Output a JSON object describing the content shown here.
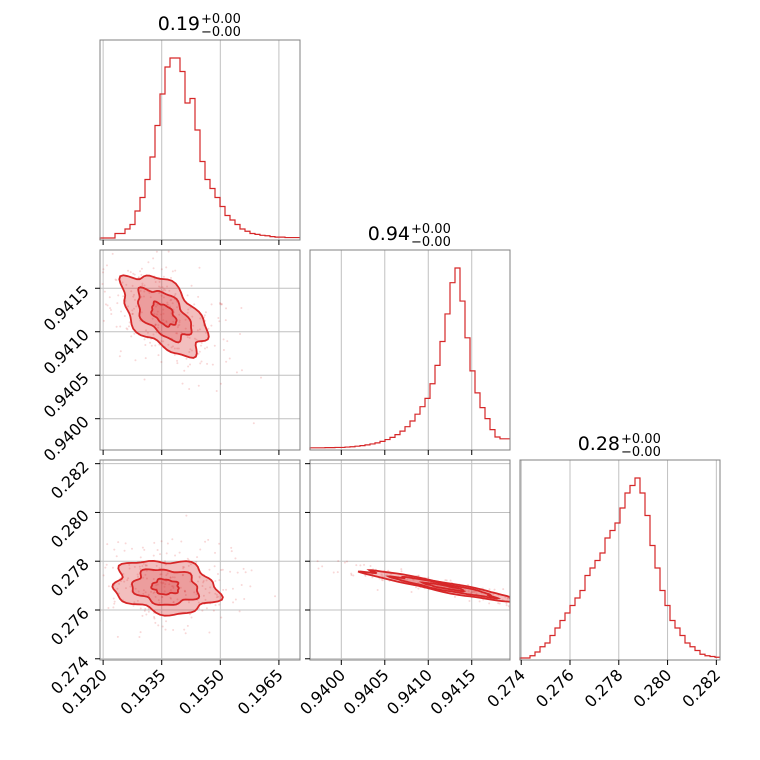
{
  "chart_data": {
    "type": "corner",
    "color": "#d62728",
    "titles": [
      {
        "value": "0.19",
        "upper": "+0.00",
        "lower": "−0.00"
      },
      {
        "value": "0.94",
        "upper": "+0.00",
        "lower": "−0.00"
      },
      {
        "value": "0.28",
        "upper": "+0.00",
        "lower": "−0.00"
      }
    ],
    "params": [
      {
        "range": [
          0.19192,
          0.19704
        ],
        "ticks": [
          0.192,
          0.1935,
          0.195,
          0.1965
        ],
        "tick_labels": [
          "0.1920",
          "0.1935",
          "0.1950",
          "0.1965"
        ]
      },
      {
        "range": [
          0.93964,
          0.94194
        ],
        "ticks": [
          0.94,
          0.9405,
          0.941,
          0.9415
        ],
        "tick_labels": [
          "0.9400",
          "0.9405",
          "0.9410",
          "0.9415"
        ]
      },
      {
        "range": [
          0.27395,
          0.28215
        ],
        "ticks": [
          0.274,
          0.276,
          0.278,
          0.28,
          0.282
        ],
        "tick_labels": [
          "0.274",
          "0.276",
          "0.278",
          "0.280",
          "0.282"
        ]
      }
    ],
    "hist_bins": 40,
    "histograms": [
      [
        0,
        0,
        0,
        1,
        1,
        2,
        3,
        6,
        9,
        13,
        18,
        25,
        32,
        38,
        40,
        40,
        37,
        30,
        31,
        24,
        17,
        13,
        11,
        9,
        7,
        5,
        4,
        3,
        2,
        1.5,
        1,
        0.8,
        0.6,
        0.5,
        0.3,
        0.2,
        0.2,
        0.1,
        0.1,
        0.1
      ],
      [
        0.1,
        0.1,
        0.1,
        0.2,
        0.2,
        0.3,
        0.3,
        0.5,
        0.7,
        1,
        1.3,
        1.7,
        2.2,
        2.8,
        3.6,
        4.6,
        5.8,
        7.3,
        9.2,
        11.6,
        14.7,
        18.4,
        22.5,
        27,
        35,
        45,
        58,
        73,
        90,
        98,
        80,
        60,
        42,
        30,
        22,
        16,
        10,
        6,
        5,
        5
      ],
      [
        0,
        0,
        0.3,
        0.8,
        1.5,
        2,
        3,
        4,
        5,
        6,
        7,
        8,
        9,
        11,
        12,
        13,
        14,
        16,
        17,
        18,
        20,
        22,
        23,
        24,
        22,
        19,
        15,
        12,
        9,
        7,
        5,
        4,
        3,
        2,
        1.5,
        1,
        0.5,
        0.3,
        0.2,
        0.1
      ]
    ],
    "pairs": [
      {
        "x": 0,
        "y": 1,
        "center": [
          0.19355,
          0.9412
        ],
        "levels": [
          {
            "a": 0.0011,
            "b": 0.00038,
            "angle": -0.25
          },
          {
            "a": 0.0007,
            "b": 0.00024,
            "angle": -0.25
          },
          {
            "a": 0.00032,
            "b": 0.00011,
            "angle": -0.25
          }
        ]
      },
      {
        "x": 0,
        "y": 2,
        "center": [
          0.1936,
          0.27695
        ],
        "levels": [
          {
            "a": 0.00135,
            "b": 0.00105,
            "angle": -0.35
          },
          {
            "a": 0.00085,
            "b": 0.0007,
            "angle": -0.35
          },
          {
            "a": 0.00035,
            "b": 0.0003,
            "angle": -0.35
          }
        ]
      },
      {
        "x": 1,
        "y": 2,
        "center": [
          0.94118,
          0.27695
        ],
        "levels": [
          {
            "a": 0.00112,
            "b": 0.00016,
            "angle": -0.62
          },
          {
            "a": 0.0007,
            "b": 0.00011,
            "angle": -0.62
          },
          {
            "a": 0.00028,
            "b": 5e-05,
            "angle": -0.62
          }
        ]
      }
    ]
  }
}
